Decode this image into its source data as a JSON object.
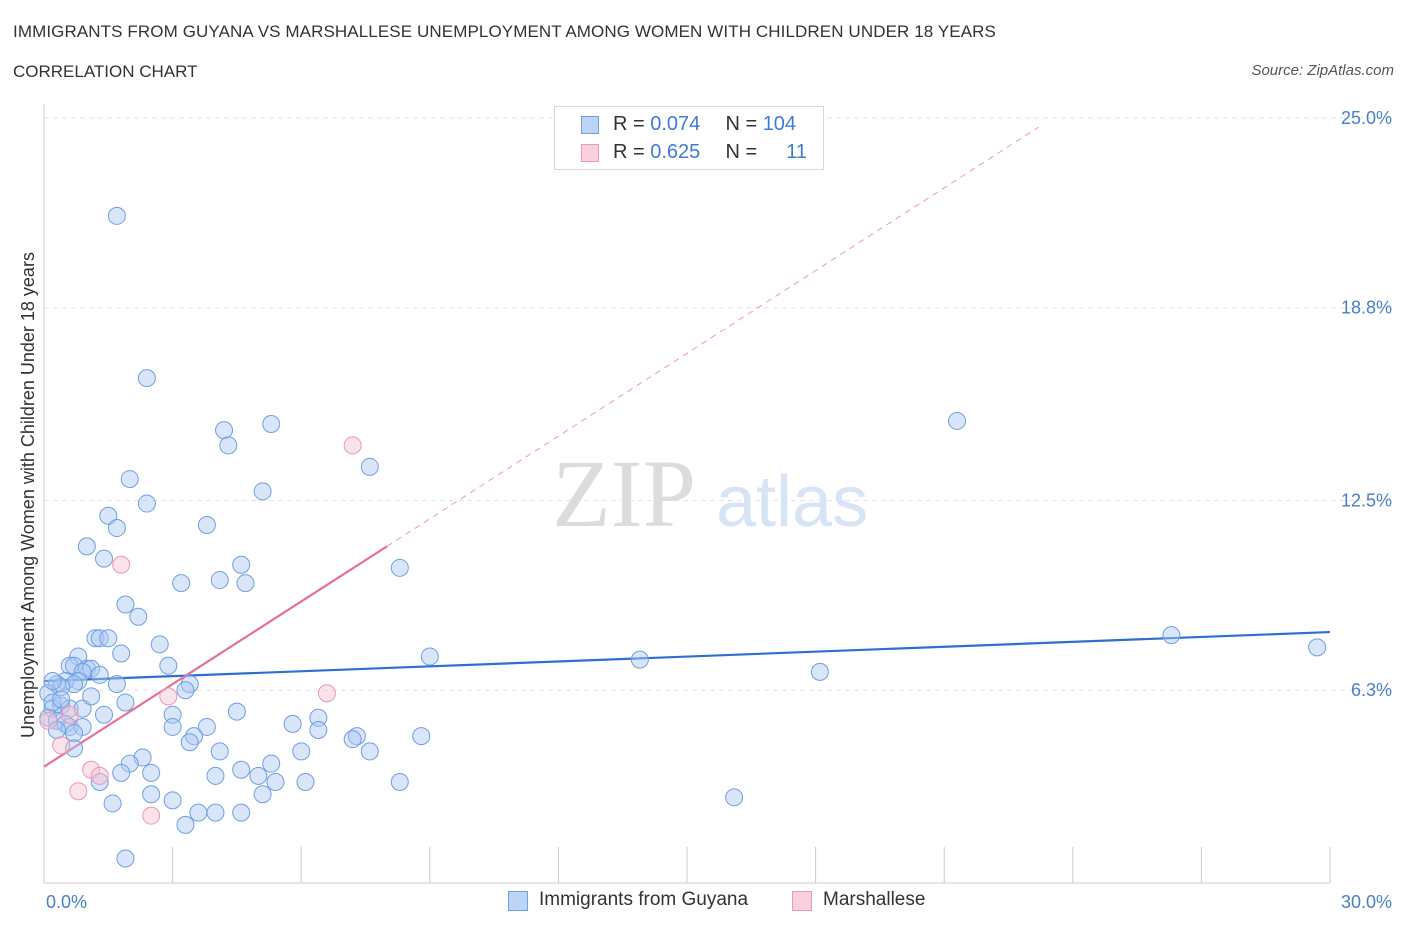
{
  "title": "IMMIGRANTS FROM GUYANA VS MARSHALLESE UNEMPLOYMENT AMONG WOMEN WITH CHILDREN UNDER 18 YEARS",
  "subtitle": "CORRELATION CHART",
  "source": "Source: ZipAtlas.com",
  "watermark": {
    "zip": "ZIP",
    "atlas": "atlas"
  },
  "legend": {
    "rows": [
      {
        "r_label": "R =",
        "r_value": "0.074",
        "n_label": "N =",
        "n_value": "104",
        "color": "#aac8f3"
      },
      {
        "r_label": "R =",
        "r_value": "0.625",
        "n_label": "N =",
        "n_value": "11",
        "color": "#f6c1d1"
      }
    ]
  },
  "bottom_legend": [
    {
      "label": "Immigrants from Guyana",
      "color": "#aac8f3"
    },
    {
      "label": "Marshallese",
      "color": "#f6c1d1"
    }
  ],
  "chart_data": {
    "type": "scatter",
    "title": "IMMIGRANTS FROM GUYANA VS MARSHALLESE UNEMPLOYMENT AMONG WOMEN WITH CHILDREN UNDER 18 YEARS",
    "ylabel": "Unemployment Among Women with Children Under 18 years",
    "xlabel": "",
    "xlim": [
      0,
      30
    ],
    "ylim": [
      0,
      25
    ],
    "x_tick_labels": [
      "0.0%",
      "30.0%"
    ],
    "y_tick_values": [
      6.3,
      12.5,
      18.8,
      25.0
    ],
    "y_tick_labels": [
      "6.3%",
      "12.5%",
      "18.8%",
      "25.0%"
    ],
    "grid": true,
    "series": [
      {
        "name": "Immigrants from Guyana",
        "color": "#4a86d8",
        "points": [
          [
            1.7,
            21.8
          ],
          [
            2.4,
            16.5
          ],
          [
            4.2,
            14.8
          ],
          [
            4.3,
            14.3
          ],
          [
            5.3,
            15.0
          ],
          [
            7.6,
            13.6
          ],
          [
            2.0,
            13.2
          ],
          [
            5.1,
            12.8
          ],
          [
            2.4,
            12.4
          ],
          [
            1.5,
            12.0
          ],
          [
            1.7,
            11.6
          ],
          [
            3.8,
            11.7
          ],
          [
            1.0,
            11.0
          ],
          [
            1.4,
            10.6
          ],
          [
            4.6,
            10.4
          ],
          [
            8.3,
            10.3
          ],
          [
            3.2,
            9.8
          ],
          [
            4.1,
            9.9
          ],
          [
            4.7,
            9.8
          ],
          [
            1.9,
            9.1
          ],
          [
            2.2,
            8.7
          ],
          [
            1.2,
            8.0
          ],
          [
            1.3,
            8.0
          ],
          [
            1.5,
            8.0
          ],
          [
            2.7,
            7.8
          ],
          [
            1.8,
            7.5
          ],
          [
            0.8,
            7.4
          ],
          [
            0.6,
            7.1
          ],
          [
            0.7,
            7.1
          ],
          [
            1.0,
            7.0
          ],
          [
            1.1,
            7.0
          ],
          [
            0.9,
            6.9
          ],
          [
            1.3,
            6.8
          ],
          [
            0.8,
            6.6
          ],
          [
            0.5,
            6.6
          ],
          [
            2.9,
            7.1
          ],
          [
            0.7,
            6.5
          ],
          [
            0.3,
            6.5
          ],
          [
            0.4,
            6.4
          ],
          [
            1.7,
            6.5
          ],
          [
            3.4,
            6.5
          ],
          [
            3.3,
            6.3
          ],
          [
            0.1,
            6.2
          ],
          [
            0.2,
            5.7
          ],
          [
            0.4,
            5.8
          ],
          [
            0.6,
            5.7
          ],
          [
            0.9,
            5.7
          ],
          [
            1.9,
            5.9
          ],
          [
            1.4,
            5.5
          ],
          [
            3.0,
            5.5
          ],
          [
            4.5,
            5.6
          ],
          [
            0.1,
            5.4
          ],
          [
            0.3,
            5.3
          ],
          [
            0.5,
            5.2
          ],
          [
            0.6,
            5.1
          ],
          [
            0.9,
            5.1
          ],
          [
            6.4,
            5.4
          ],
          [
            5.8,
            5.2
          ],
          [
            3.0,
            5.1
          ],
          [
            3.8,
            5.1
          ],
          [
            6.4,
            5.0
          ],
          [
            0.3,
            5.0
          ],
          [
            0.7,
            4.9
          ],
          [
            3.5,
            4.8
          ],
          [
            7.3,
            4.8
          ],
          [
            7.2,
            4.7
          ],
          [
            8.8,
            4.8
          ],
          [
            3.4,
            4.6
          ],
          [
            0.7,
            4.4
          ],
          [
            4.1,
            4.3
          ],
          [
            6.0,
            4.3
          ],
          [
            7.6,
            4.3
          ],
          [
            2.3,
            4.1
          ],
          [
            2.0,
            3.9
          ],
          [
            5.3,
            3.9
          ],
          [
            4.6,
            3.7
          ],
          [
            1.8,
            3.6
          ],
          [
            2.5,
            3.6
          ],
          [
            4.0,
            3.5
          ],
          [
            5.0,
            3.5
          ],
          [
            1.3,
            3.3
          ],
          [
            5.4,
            3.3
          ],
          [
            6.1,
            3.3
          ],
          [
            8.3,
            3.3
          ],
          [
            2.5,
            2.9
          ],
          [
            3.0,
            2.7
          ],
          [
            5.1,
            2.9
          ],
          [
            1.6,
            2.6
          ],
          [
            4.0,
            2.3
          ],
          [
            4.6,
            2.3
          ],
          [
            3.6,
            2.3
          ],
          [
            3.3,
            1.9
          ],
          [
            1.9,
            0.8
          ],
          [
            21.3,
            15.1
          ],
          [
            13.9,
            7.3
          ],
          [
            9.0,
            7.4
          ],
          [
            18.1,
            6.9
          ],
          [
            26.3,
            8.1
          ],
          [
            29.7,
            7.7
          ],
          [
            16.1,
            2.8
          ],
          [
            0.2,
            5.9
          ],
          [
            0.4,
            6.0
          ],
          [
            1.1,
            6.1
          ],
          [
            0.2,
            6.6
          ]
        ]
      },
      {
        "name": "Marshallese",
        "color": "#ec7aa0",
        "points": [
          [
            7.2,
            14.3
          ],
          [
            1.8,
            10.4
          ],
          [
            6.6,
            6.2
          ],
          [
            2.9,
            6.1
          ],
          [
            0.6,
            5.5
          ],
          [
            0.4,
            4.5
          ],
          [
            1.1,
            3.7
          ],
          [
            1.3,
            3.5
          ],
          [
            0.8,
            3.0
          ],
          [
            2.5,
            2.2
          ],
          [
            0.1,
            5.3
          ]
        ]
      }
    ],
    "trend_lines": [
      {
        "series": "Immigrants from Guyana",
        "x": [
          0,
          30
        ],
        "y": [
          6.6,
          8.2
        ],
        "style": "solid"
      },
      {
        "series": "Marshallese",
        "x": [
          0,
          8.0
        ],
        "y": [
          3.8,
          11.0
        ],
        "style": "solid"
      },
      {
        "series": "Marshallese",
        "x": [
          8.0,
          23.2
        ],
        "y": [
          11.0,
          24.7
        ],
        "style": "dashed"
      }
    ]
  }
}
